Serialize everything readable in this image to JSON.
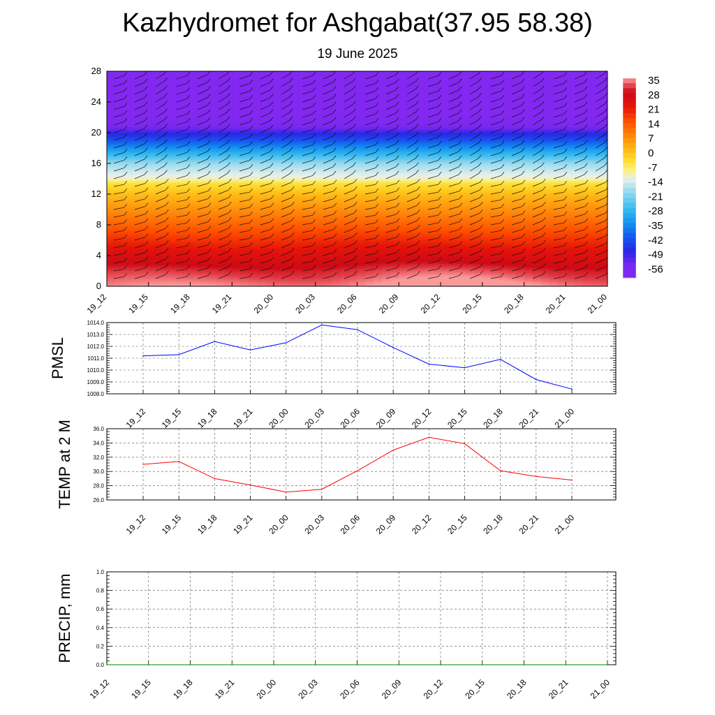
{
  "header": {
    "title": "Kazhydromet for Ashgabat(37.95 58.38)",
    "subtitle": "19 June 2025"
  },
  "chart_data": [
    {
      "type": "heatmap",
      "xlabels": [
        "19_12",
        "19_15",
        "19_18",
        "19_21",
        "20_00",
        "20_03",
        "20_06",
        "20_09",
        "20_12",
        "20_15",
        "20_18",
        "20_21",
        "21_00"
      ],
      "ylim": [
        0,
        28
      ],
      "yticks": [
        0,
        4,
        8,
        12,
        16,
        20,
        24,
        28
      ],
      "colorbar": {
        "labels": [
          "35",
          "28",
          "21",
          "14",
          "7",
          "0",
          "-7",
          "-14",
          "-21",
          "-28",
          "-35",
          "-42",
          "-49",
          "-56"
        ]
      },
      "profile_levels": [
        0,
        2,
        4,
        6,
        8,
        10,
        12,
        13.5,
        14,
        16,
        18,
        20,
        21,
        22,
        28
      ],
      "profile_values": [
        34,
        30,
        24,
        18,
        12,
        6,
        0,
        -6,
        -12,
        -20,
        -35,
        -50,
        -58,
        -62,
        -62
      ],
      "surface_warm_anomaly": [
        {
          "center_x": 8.0,
          "amplitude": 4
        }
      ]
    },
    {
      "type": "line",
      "ylabel": "PMSL",
      "xlabels": [
        "19_12",
        "19_15",
        "19_18",
        "19_21",
        "20_00",
        "20_03",
        "20_06",
        "20_09",
        "20_12",
        "20_15",
        "20_18",
        "20_21",
        "21_00"
      ],
      "ylim": [
        1008.0,
        1014.0
      ],
      "yticks": [
        "1008.0",
        "1009.0",
        "1010.0",
        "1011.0",
        "1012.0",
        "1013.0",
        "1014.0"
      ],
      "series": [
        {
          "values": [
            1011.2,
            1011.3,
            1012.4,
            1011.7,
            1012.3,
            1013.8,
            1013.4,
            1011.9,
            1010.5,
            1010.2,
            1010.9,
            1009.2,
            1008.4
          ],
          "color": "#0000ff"
        }
      ]
    },
    {
      "type": "line",
      "ylabel": "TEMP at 2 M",
      "xlabels": [
        "19_12",
        "19_15",
        "19_18",
        "19_21",
        "20_00",
        "20_03",
        "20_06",
        "20_09",
        "20_12",
        "20_15",
        "20_18",
        "20_21",
        "21_00"
      ],
      "ylim": [
        26.0,
        36.0
      ],
      "yticks": [
        "26.0",
        "28.0",
        "30.0",
        "32.0",
        "34.0",
        "36.0"
      ],
      "series": [
        {
          "values": [
            31.0,
            31.4,
            29.0,
            28.1,
            27.1,
            27.5,
            30.1,
            33.0,
            34.8,
            33.9,
            30.1,
            29.3,
            28.8
          ],
          "color": "#ff0000"
        }
      ]
    },
    {
      "type": "line",
      "ylabel": "PRECIP, mm",
      "xlabels": [
        "19_12",
        "19_15",
        "19_18",
        "19_21",
        "20_00",
        "20_03",
        "20_06",
        "20_09",
        "20_12",
        "20_15",
        "20_18",
        "20_21",
        "21_00"
      ],
      "ylim": [
        0.0,
        1.0
      ],
      "yticks": [
        "0.0",
        "0.2",
        "0.4",
        "0.6",
        "0.8",
        "1.0"
      ],
      "series": [
        {
          "values": [
            0,
            0,
            0,
            0,
            0,
            0,
            0,
            0,
            0,
            0,
            0,
            0,
            0
          ],
          "color": "#008000"
        }
      ]
    }
  ]
}
